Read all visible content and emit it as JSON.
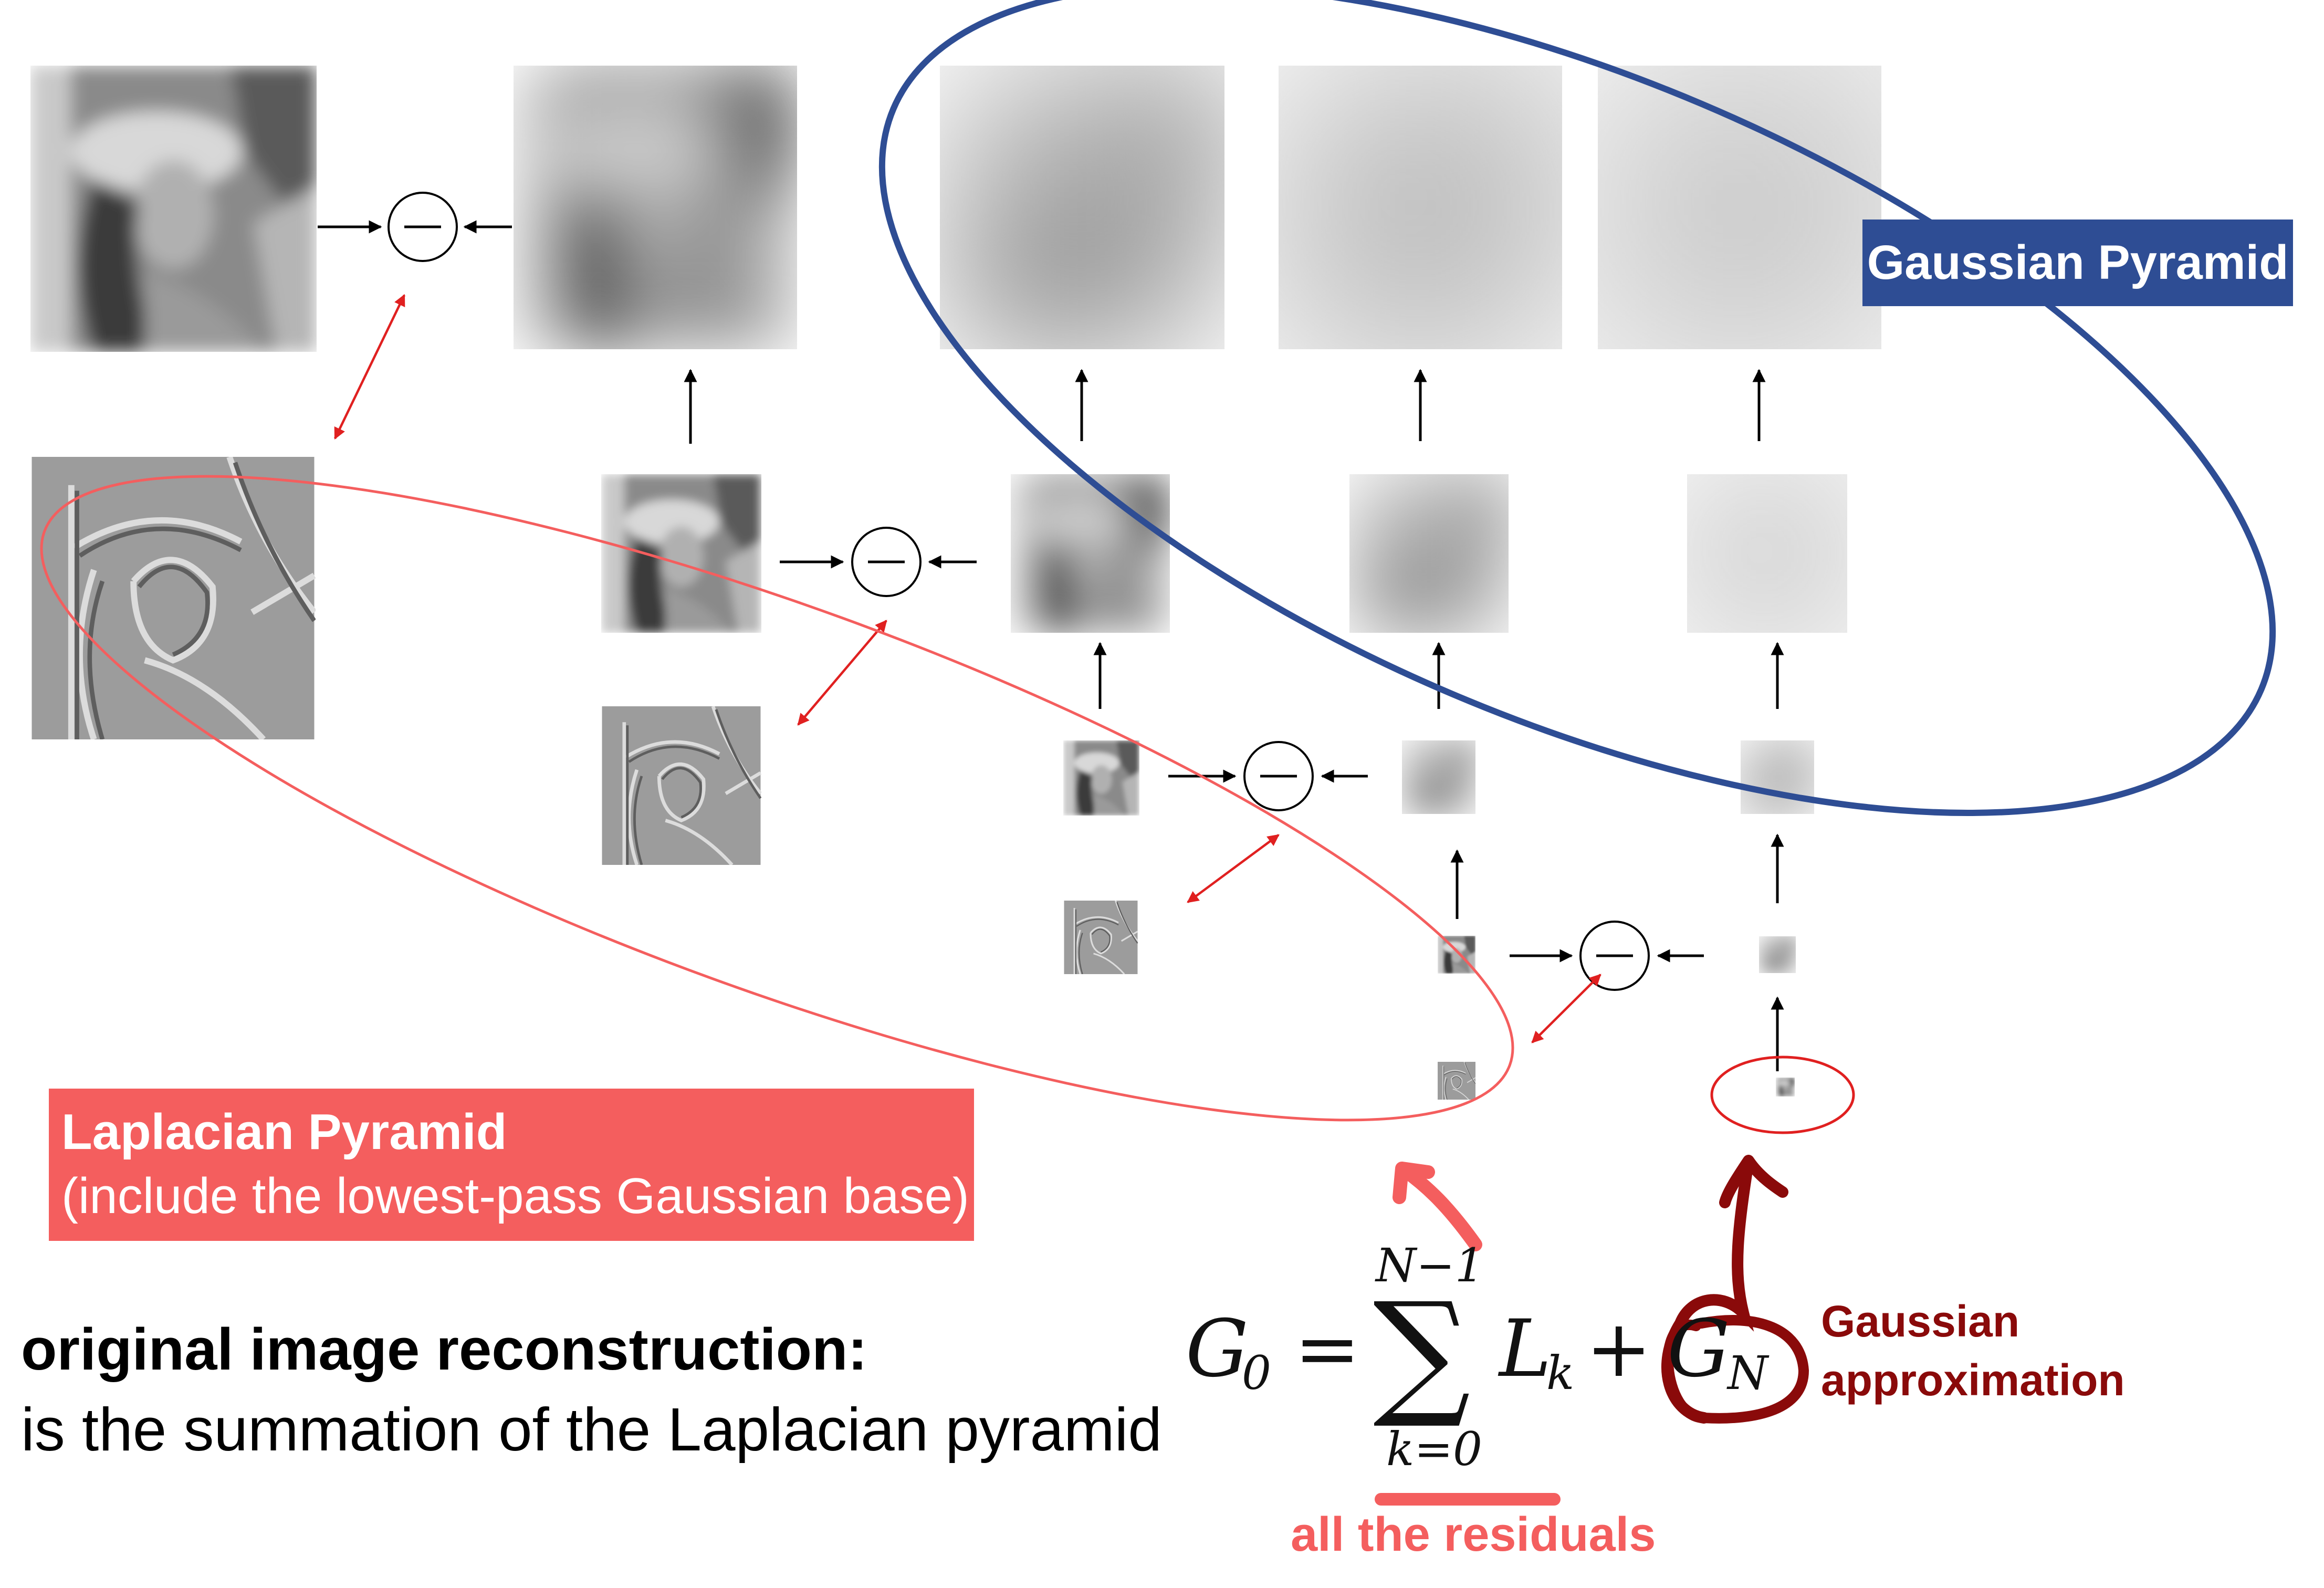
{
  "gaussian_label": "Gaussian Pyramid",
  "laplacian_label": {
    "title": "Laplacian Pyramid",
    "subtitle": "(include the lowest-pass Gaussian base)"
  },
  "reconstruction": {
    "title": "original image reconstruction:",
    "body": "is the summation of the Laplacian pyramid"
  },
  "formula": {
    "lhs": "G",
    "lhs_sub": "0",
    "equals": "=",
    "sum_upper": "N−1",
    "sum_symbol": "∑",
    "sum_lower": "k=0",
    "term": "L",
    "term_sub": "k",
    "plus": "+",
    "gauss_term": "G",
    "gauss_sub": "N"
  },
  "annotations": {
    "gaussian_approximation": [
      "Gaussian",
      "approximation"
    ],
    "all_residuals": "all the residuals"
  },
  "operator_symbol": "−",
  "colors": {
    "gaussian_blue": "#2e4d94",
    "laplacian_red": "#f45e5e",
    "dark_red": "#8a0a0a",
    "arrow_red": "#e02020"
  }
}
